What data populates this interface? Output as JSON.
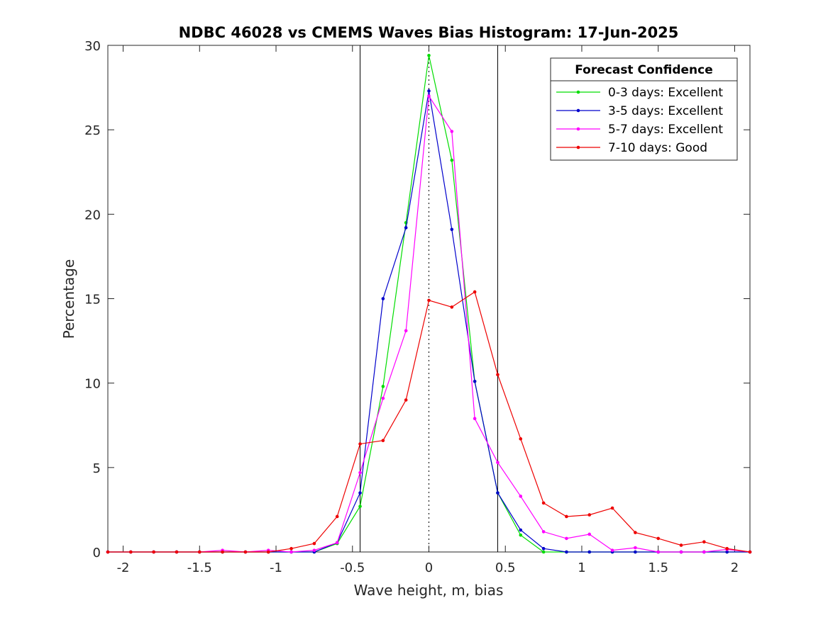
{
  "chart_data": {
    "type": "line",
    "title": "NDBC 46028 vs CMEMS Waves Bias Histogram: 17-Jun-2025",
    "xlabel": "Wave height, m, bias",
    "ylabel": "Percentage",
    "xlim": [
      -2.1,
      2.1
    ],
    "ylim": [
      0,
      30
    ],
    "xticks": [
      -2,
      -1.5,
      -1,
      -0.5,
      0,
      0.5,
      1,
      1.5,
      2
    ],
    "xtick_labels": [
      "-2",
      "-1.5",
      "-1",
      "-0.5",
      "0",
      "0.5",
      "1",
      "1.5",
      "2"
    ],
    "yticks": [
      0,
      5,
      10,
      15,
      20,
      25,
      30
    ],
    "ytick_labels": [
      "0",
      "5",
      "10",
      "15",
      "20",
      "25",
      "30"
    ],
    "grid": false,
    "vertical_lines": [
      {
        "x": -0.45,
        "style": "solid"
      },
      {
        "x": 0.45,
        "style": "solid"
      },
      {
        "x": 0,
        "style": "dotted"
      }
    ],
    "legend": {
      "title": "Forecast Confidence",
      "position": "top-right"
    },
    "x": [
      -2.1,
      -1.95,
      -1.8,
      -1.65,
      -1.5,
      -1.35,
      -1.2,
      -1.05,
      -0.9,
      -0.75,
      -0.6,
      -0.45,
      -0.3,
      -0.15,
      0,
      0.15,
      0.3,
      0.45,
      0.6,
      0.75,
      0.9,
      1.05,
      1.2,
      1.35,
      1.5,
      1.65,
      1.8,
      1.95,
      2.1
    ],
    "series": [
      {
        "name": "0-3 days: Excellent",
        "color": "#00dd00",
        "values": [
          0,
          0,
          0,
          0,
          0,
          0,
          0,
          0,
          0,
          0,
          0.5,
          2.7,
          9.8,
          19.5,
          29.4,
          23.2,
          10.1,
          3.5,
          1.0,
          0,
          0,
          0,
          0,
          0,
          0,
          0,
          0,
          0,
          0
        ]
      },
      {
        "name": "3-5 days: Excellent",
        "color": "#0000cc",
        "values": [
          0,
          0,
          0,
          0,
          0,
          0,
          0,
          0,
          0,
          0,
          0.55,
          3.5,
          15.0,
          19.2,
          27.3,
          19.1,
          10.1,
          3.5,
          1.3,
          0.2,
          0,
          0,
          0,
          0,
          0,
          0,
          0,
          0,
          0
        ]
      },
      {
        "name": "5-7 days: Excellent",
        "color": "#ff00ff",
        "values": [
          0,
          0,
          0,
          0,
          0,
          0.1,
          0,
          0.1,
          0,
          0.1,
          0.55,
          4.7,
          9.1,
          13.1,
          27.0,
          24.9,
          7.9,
          5.3,
          3.3,
          1.2,
          0.8,
          1.05,
          0.1,
          0.25,
          0,
          0,
          0,
          0.15,
          0
        ]
      },
      {
        "name": "7-10 days: Good",
        "color": "#ee0000",
        "values": [
          0,
          0,
          0,
          0,
          0,
          0,
          0,
          0,
          0.2,
          0.5,
          2.1,
          6.4,
          6.6,
          9.0,
          14.9,
          14.5,
          15.4,
          10.5,
          6.7,
          2.9,
          2.1,
          2.2,
          2.6,
          1.15,
          0.8,
          0.4,
          0.6,
          0.2,
          0
        ]
      }
    ]
  }
}
